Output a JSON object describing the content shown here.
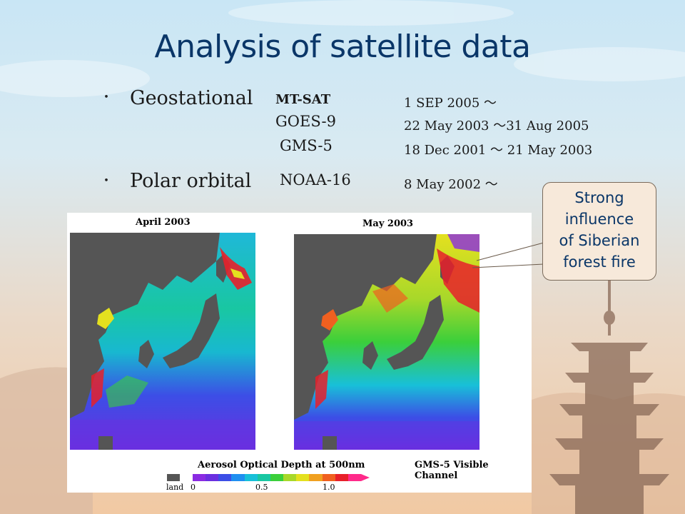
{
  "slide": {
    "title": "Analysis of satellite data",
    "colors": {
      "title": "#0a3668",
      "callout_bg": "#f7e9da"
    }
  },
  "geostational": {
    "label": "Geostational",
    "satellites": [
      {
        "name": "MT-SAT",
        "period": "1 SEP 2005 ～"
      },
      {
        "name": "GOES-9",
        "period": "22 May 2003 ～31 Aug 2005"
      },
      {
        "name": "GMS-5",
        "period": "18 Dec 2001 ～ 21 May 2003"
      }
    ]
  },
  "polar": {
    "label": "Polar orbital",
    "satellites": [
      {
        "name": "NOAA-16",
        "period": "8 May 2002 ～"
      }
    ]
  },
  "bullet_symbol": "・",
  "maps": {
    "left_title": "April 2003",
    "right_title": "May 2003",
    "legend_title": "Aerosol Optical Depth at 500nm",
    "source": "GMS-5 Visible Channel",
    "legend": {
      "land_label": "land",
      "ticks": [
        "0",
        "0.5",
        "1.0"
      ],
      "land_color": "#555555",
      "colors": [
        "#8a2be2",
        "#6a2fe0",
        "#3c4ee6",
        "#1f8ff0",
        "#18c0d8",
        "#19c7a2",
        "#3bcf3b",
        "#a8d82a",
        "#e4e01f",
        "#f0a020",
        "#f06020",
        "#e8202a",
        "#ff2a8a"
      ]
    }
  },
  "callout": {
    "lines": [
      "Strong",
      "influence",
      "of Siberian",
      "forest fire"
    ]
  }
}
